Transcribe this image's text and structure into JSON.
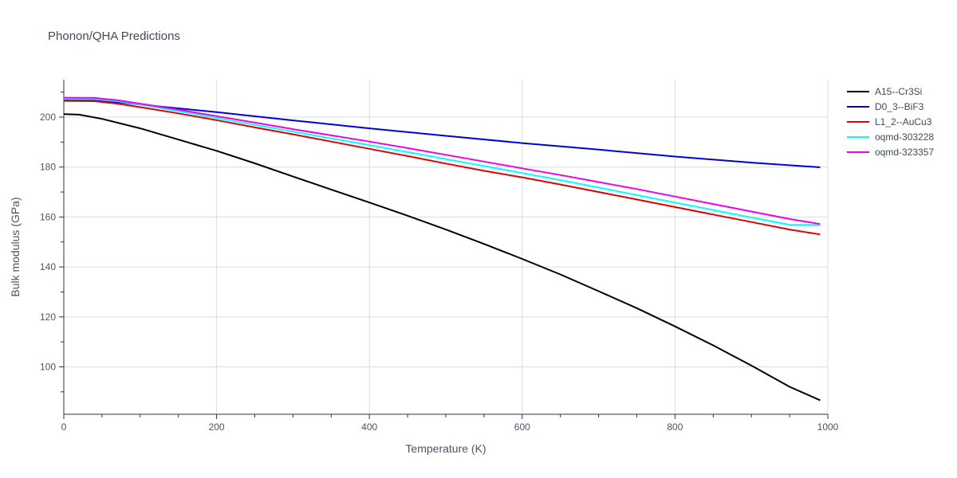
{
  "chart_data": {
    "type": "line",
    "title": "Phonon/QHA Predictions",
    "xlabel": "Temperature (K)",
    "ylabel": "Bulk modulus (GPa)",
    "xlim": [
      0,
      1000
    ],
    "ylim": [
      81,
      215
    ],
    "x_ticks": [
      0,
      200,
      400,
      600,
      800,
      1000
    ],
    "y_ticks": [
      100,
      120,
      140,
      160,
      180,
      200
    ],
    "grid": true,
    "legend_position": "top-right",
    "series": [
      {
        "name": "A15--Cr3Si",
        "color": "#000000",
        "x": [
          0,
          20,
          50,
          100,
          150,
          200,
          250,
          300,
          350,
          400,
          450,
          500,
          550,
          600,
          650,
          700,
          750,
          800,
          850,
          900,
          950,
          990
        ],
        "y": [
          201.2,
          201.0,
          199.3,
          195.5,
          191.0,
          186.5,
          181.5,
          176.2,
          171.0,
          165.8,
          160.5,
          155.0,
          149.2,
          143.2,
          137.0,
          130.3,
          123.5,
          116.2,
          108.6,
          100.5,
          92.0,
          86.6
        ]
      },
      {
        "name": "D0_3--BiF3",
        "color": "#0000dd",
        "x": [
          0,
          40,
          70,
          100,
          150,
          200,
          300,
          400,
          500,
          600,
          700,
          800,
          900,
          990
        ],
        "y": [
          206.8,
          206.8,
          206.0,
          205.0,
          203.5,
          202.0,
          198.7,
          195.5,
          192.5,
          189.6,
          187.0,
          184.2,
          181.8,
          179.9
        ]
      },
      {
        "name": "L1_2--AuCu3",
        "color": "#e00000",
        "x": [
          0,
          40,
          70,
          100,
          150,
          200,
          250,
          300,
          350,
          400,
          450,
          500,
          550,
          600,
          650,
          700,
          750,
          800,
          850,
          900,
          950,
          990
        ],
        "y": [
          206.5,
          206.4,
          205.4,
          204.0,
          201.5,
          198.8,
          195.9,
          193.1,
          190.2,
          187.3,
          184.4,
          181.4,
          178.5,
          175.9,
          173.0,
          170.0,
          167.0,
          164.0,
          161.0,
          158.0,
          155.0,
          153.0
        ]
      },
      {
        "name": "oqmd-303228",
        "color": "#00ffff",
        "x": [
          0,
          40,
          70,
          100,
          150,
          200,
          250,
          300,
          350,
          400,
          450,
          500,
          550,
          600,
          650,
          700,
          750,
          800,
          850,
          900,
          950,
          990
        ],
        "y": [
          207.3,
          207.2,
          206.4,
          205.0,
          202.4,
          199.7,
          196.9,
          194.2,
          191.5,
          188.8,
          186.0,
          183.2,
          180.4,
          177.6,
          174.8,
          171.8,
          168.8,
          165.8,
          162.8,
          159.8,
          156.9,
          156.8
        ]
      },
      {
        "name": "oqmd-323357",
        "color": "#ee00ee",
        "x": [
          0,
          40,
          70,
          100,
          150,
          200,
          250,
          300,
          350,
          400,
          450,
          500,
          550,
          600,
          650,
          700,
          750,
          800,
          850,
          900,
          950,
          990
        ],
        "y": [
          207.8,
          207.7,
          206.8,
          205.4,
          203.0,
          200.4,
          197.8,
          195.2,
          192.7,
          190.2,
          187.6,
          184.9,
          182.2,
          179.5,
          176.8,
          174.0,
          171.2,
          168.2,
          165.2,
          162.2,
          159.2,
          157.2
        ]
      }
    ]
  }
}
